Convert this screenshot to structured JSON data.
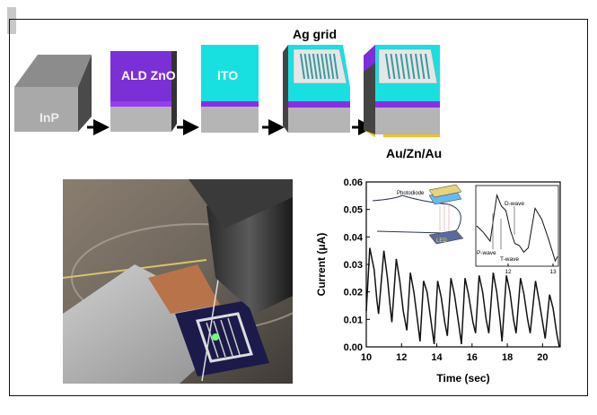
{
  "process": {
    "steps": [
      {
        "label": "InP"
      },
      {
        "label": "ALD ZnO"
      },
      {
        "label": "ITO"
      },
      {
        "label": "Ag grid"
      },
      {
        "label": "Au/Zn/Au"
      }
    ],
    "colors": {
      "inp": "#a9a9a9",
      "zno": "#7b2fd6",
      "ito": "#19e0e0",
      "ag": "#d8d8d8",
      "au": "#f2c21a"
    }
  },
  "photo": {
    "description_icon": "device-photo"
  },
  "chart_data": {
    "type": "line",
    "xlabel": "Time (sec)",
    "ylabel": "Current (μA)",
    "xlim": [
      10,
      21
    ],
    "ylim": [
      0,
      0.06
    ],
    "xticks": [
      "10",
      "12",
      "14",
      "16",
      "18",
      "20"
    ],
    "yticks": [
      "0.00",
      "0.01",
      "0.02",
      "0.03",
      "0.04",
      "0.05",
      "0.06"
    ],
    "grid": false,
    "series": [
      {
        "points": [
          [
            10.0,
            0.013
          ],
          [
            10.2,
            0.036
          ],
          [
            10.45,
            0.028
          ],
          [
            10.6,
            0.017
          ],
          [
            10.7,
            0.012
          ],
          [
            11.0,
            0.035
          ],
          [
            11.2,
            0.025
          ],
          [
            11.35,
            0.015
          ],
          [
            11.45,
            0.009
          ],
          [
            11.7,
            0.032
          ],
          [
            11.9,
            0.024
          ],
          [
            12.1,
            0.013
          ],
          [
            12.3,
            0.006
          ],
          [
            12.5,
            0.027
          ],
          [
            12.7,
            0.02
          ],
          [
            12.9,
            0.01
          ],
          [
            13.05,
            0.002
          ],
          [
            13.25,
            0.024
          ],
          [
            13.45,
            0.02
          ],
          [
            13.7,
            0.008
          ],
          [
            13.85,
            0.001
          ],
          [
            14.05,
            0.024
          ],
          [
            14.25,
            0.018
          ],
          [
            14.45,
            0.009
          ],
          [
            14.6,
            0.004
          ],
          [
            14.8,
            0.025
          ],
          [
            15.0,
            0.019
          ],
          [
            15.25,
            0.008
          ],
          [
            15.4,
            0.001
          ],
          [
            15.6,
            0.025
          ],
          [
            15.8,
            0.019
          ],
          [
            16.05,
            0.009
          ],
          [
            16.2,
            0.005
          ],
          [
            16.4,
            0.026
          ],
          [
            16.6,
            0.02
          ],
          [
            16.8,
            0.01
          ],
          [
            16.95,
            0.005
          ],
          [
            17.2,
            0.027
          ],
          [
            17.4,
            0.02
          ],
          [
            17.6,
            0.009
          ],
          [
            17.7,
            0.002
          ],
          [
            17.95,
            0.026
          ],
          [
            18.15,
            0.02
          ],
          [
            18.35,
            0.01
          ],
          [
            18.5,
            0.005
          ],
          [
            18.75,
            0.025
          ],
          [
            18.95,
            0.019
          ],
          [
            19.15,
            0.01
          ],
          [
            19.3,
            0.005
          ],
          [
            19.6,
            0.024
          ],
          [
            19.8,
            0.017
          ],
          [
            20.0,
            0.009
          ],
          [
            20.15,
            0.003
          ],
          [
            20.4,
            0.019
          ],
          [
            20.6,
            0.014
          ],
          [
            20.8,
            0.005
          ],
          [
            20.95,
            0.0
          ]
        ]
      }
    ],
    "inset": {
      "xticks": [
        "12",
        "13"
      ],
      "xlim": [
        11.3,
        13.1
      ],
      "ylim": [
        0.004,
        0.04
      ],
      "points": [
        [
          11.3,
          0.022
        ],
        [
          11.45,
          0.019
        ],
        [
          11.6,
          0.015
        ],
        [
          11.75,
          0.036
        ],
        [
          11.85,
          0.031
        ],
        [
          11.95,
          0.029
        ],
        [
          12.05,
          0.02
        ],
        [
          12.15,
          0.014
        ],
        [
          12.25,
          0.013
        ],
        [
          12.35,
          0.01
        ],
        [
          12.45,
          0.012
        ],
        [
          12.6,
          0.03
        ],
        [
          12.75,
          0.025
        ],
        [
          12.9,
          0.016
        ],
        [
          13.05,
          0.006
        ],
        [
          13.1,
          0.008
        ]
      ],
      "annotations": [
        "P-wave",
        "T-wave",
        "D-wave"
      ],
      "schematic": {
        "photodiode": "Photodiode",
        "led": "LED"
      }
    }
  }
}
